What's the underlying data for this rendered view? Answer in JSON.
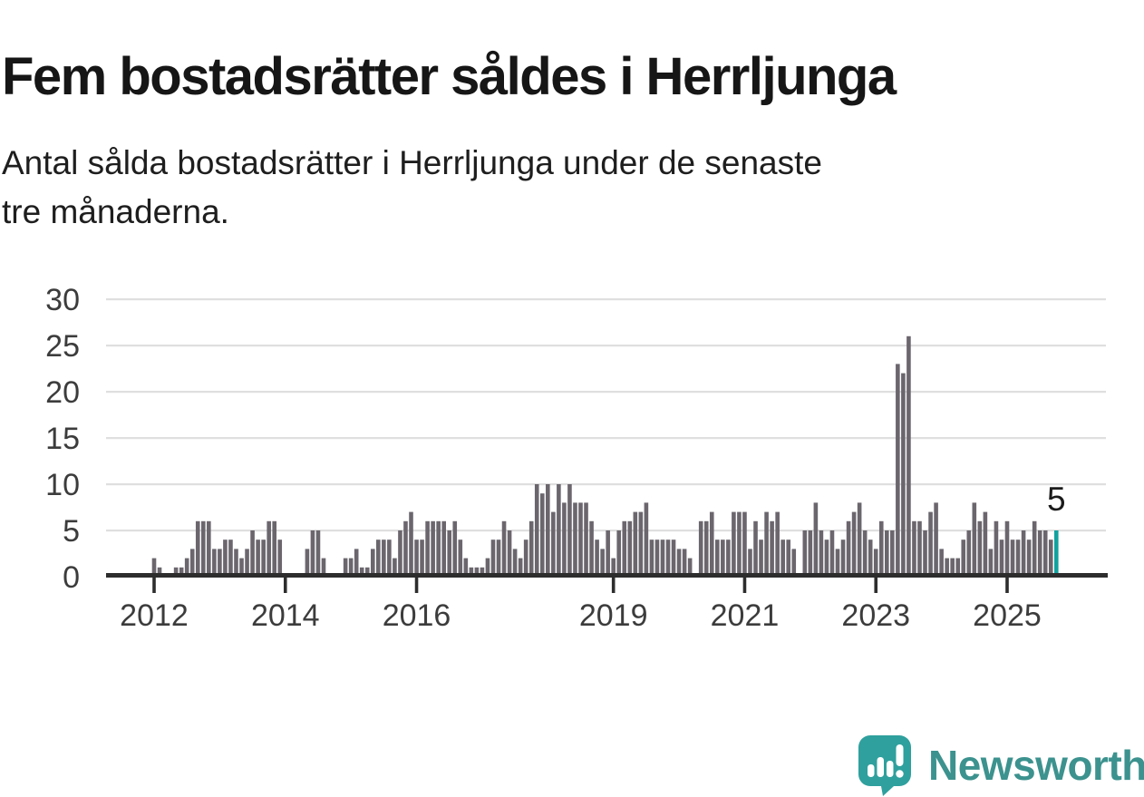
{
  "header": {
    "title": "Fem bostadsrätter såldes i Herrljunga",
    "subtitle_line1": "Antal sålda bostadsrätter i Herrljunga under de senaste",
    "subtitle_line2": "tre månaderna."
  },
  "chart_data": {
    "type": "bar",
    "title": "Fem bostadsrätter såldes i Herrljunga",
    "ylabel": "",
    "xlabel": "",
    "frequency": "monthly",
    "start": "2012-01",
    "end": "2025-10",
    "series": [
      {
        "name": "Antal sålda bostadsrätter (rullande tre månader)",
        "values": [
          2,
          1,
          0,
          0,
          1,
          1,
          2,
          3,
          6,
          6,
          6,
          3,
          3,
          4,
          4,
          3,
          2,
          3,
          5,
          4,
          4,
          6,
          6,
          4,
          0,
          0,
          0,
          0,
          3,
          5,
          5,
          2,
          0,
          0,
          0,
          2,
          2,
          3,
          1,
          1,
          3,
          4,
          4,
          4,
          2,
          5,
          6,
          7,
          4,
          4,
          6,
          6,
          6,
          6,
          5,
          6,
          4,
          2,
          1,
          1,
          1,
          2,
          4,
          4,
          6,
          5,
          3,
          2,
          4,
          6,
          10,
          9,
          10,
          7,
          10,
          8,
          10,
          8,
          8,
          8,
          6,
          4,
          3,
          5,
          2,
          5,
          6,
          6,
          7,
          7,
          8,
          4,
          4,
          4,
          4,
          4,
          3,
          3,
          2,
          0,
          6,
          6,
          7,
          4,
          4,
          4,
          7,
          7,
          7,
          3,
          6,
          4,
          7,
          6,
          7,
          4,
          4,
          3,
          0,
          5,
          5,
          8,
          5,
          4,
          5,
          3,
          4,
          6,
          7,
          8,
          5,
          4,
          3,
          6,
          5,
          5,
          23,
          22,
          26,
          6,
          6,
          5,
          7,
          8,
          3,
          2,
          2,
          2,
          4,
          5,
          8,
          6,
          7,
          3,
          6,
          4,
          6,
          4,
          4,
          5,
          4,
          6,
          5,
          5,
          4,
          5
        ]
      }
    ],
    "ylim": [
      0,
      30
    ],
    "yticks": [
      0,
      5,
      10,
      15,
      20,
      25,
      30
    ],
    "xtick_year_labels": [
      "2012",
      "2014",
      "2016",
      "2019",
      "2021",
      "2023",
      "2025"
    ],
    "grid": "horizontal",
    "legend": "none",
    "annotation_last_value": "5",
    "colors": {
      "bar": "#6b666d",
      "highlight": "#12a19f",
      "axis": "#2d2d2d",
      "gridline": "#dfdfdf",
      "tick_label": "#3c3c3c",
      "annotation": "#1b1b1b"
    }
  },
  "footer": {
    "brand": "Newsworthy",
    "brand_color": "#3c928e",
    "logo_icon": "newsworthy-speech-bubble-bar-chart-icon",
    "logo_icon_color": "#2fa09d"
  }
}
